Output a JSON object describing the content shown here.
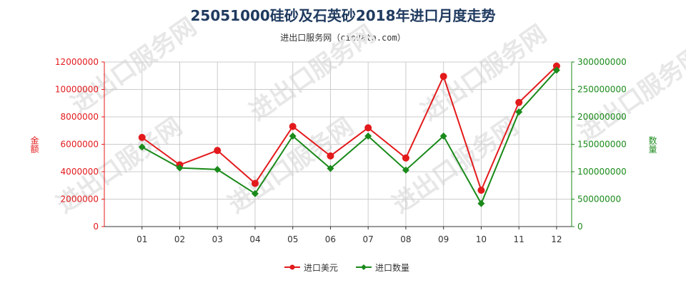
{
  "title": "25051000硅砂及石英砂2018年进口月度走势",
  "subtitle": "进出口服务网（ciedata.com）",
  "watermark": "进出口服务网",
  "colors": {
    "amount": "#e31a1c",
    "quantity": "#1a8a1a",
    "title": "#1f3a5f",
    "grid": "#cccccc",
    "watermark": "#e7e7e7"
  },
  "chart_data": {
    "type": "line",
    "categories": [
      "01",
      "02",
      "03",
      "04",
      "05",
      "06",
      "07",
      "08",
      "09",
      "10",
      "11",
      "12"
    ],
    "y_left": {
      "label": "金额",
      "ylim": [
        0,
        12000000
      ],
      "ticks": [
        "0",
        "2000000",
        "4000000",
        "6000000",
        "8000000",
        "10000000",
        "12000000"
      ]
    },
    "y_right": {
      "label": "数量",
      "ylim": [
        0,
        300000000
      ],
      "ticks": [
        "0",
        "50000000",
        "100000000",
        "150000000",
        "200000000",
        "250000000",
        "300000000"
      ]
    },
    "series": [
      {
        "name": "进口美元",
        "axis": "left",
        "marker": "circle",
        "values": [
          6500000,
          4500000,
          5550000,
          3150000,
          7300000,
          5150000,
          7200000,
          5000000,
          10950000,
          2650000,
          9050000,
          11700000
        ]
      },
      {
        "name": "进口数量",
        "axis": "right",
        "marker": "diamond",
        "values": [
          145000000,
          107000000,
          104000000,
          60000000,
          165000000,
          106000000,
          165000000,
          103000000,
          165000000,
          42000000,
          209000000,
          285000000
        ]
      }
    ],
    "grid": true,
    "legend": "bottom-center"
  }
}
